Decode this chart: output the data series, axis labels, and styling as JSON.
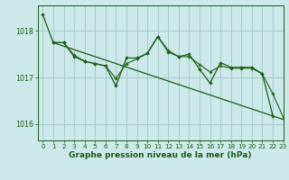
{
  "background_color": "#cce8e8",
  "grid_color": "#a8cccc",
  "line_color_dark": "#1a5c1a",
  "line_color_medium": "#2d6e2d",
  "xlabel": "Graphe pression niveau de la mer (hPa)",
  "xlim": [
    -0.5,
    23
  ],
  "ylim": [
    1015.65,
    1018.55
  ],
  "yticks": [
    1016,
    1017,
    1018
  ],
  "xticks": [
    0,
    1,
    2,
    3,
    4,
    5,
    6,
    7,
    8,
    9,
    10,
    11,
    12,
    13,
    14,
    15,
    16,
    17,
    18,
    19,
    20,
    21,
    22,
    23
  ],
  "series1_x": [
    0,
    1,
    2,
    3,
    4,
    5,
    6,
    7,
    8,
    9,
    10,
    11,
    12,
    13,
    14,
    15,
    16,
    17,
    18,
    19,
    20,
    21,
    22
  ],
  "series1_y": [
    1018.35,
    1017.75,
    1017.75,
    1017.45,
    1017.35,
    1017.3,
    1017.25,
    1016.82,
    1017.42,
    1017.42,
    1017.52,
    1017.88,
    1017.55,
    1017.45,
    1017.5,
    1017.18,
    1016.88,
    1017.32,
    1017.22,
    1017.22,
    1017.22,
    1017.08,
    1016.18
  ],
  "series2_x": [
    1,
    2,
    3,
    4,
    5,
    6,
    7,
    8,
    9,
    10,
    11,
    12,
    13,
    14,
    15,
    16,
    17,
    18,
    19,
    20,
    21,
    22,
    23
  ],
  "series2_y": [
    1017.75,
    1017.75,
    1017.48,
    1017.35,
    1017.3,
    1017.25,
    1016.98,
    1017.3,
    1017.4,
    1017.52,
    1017.88,
    1017.58,
    1017.45,
    1017.45,
    1017.28,
    1017.12,
    1017.25,
    1017.2,
    1017.2,
    1017.2,
    1017.08,
    1016.65,
    1016.15
  ],
  "trend_x": [
    1,
    23
  ],
  "trend_y": [
    1017.75,
    1016.1
  ],
  "xlabel_fontsize": 6.5,
  "tick_fontsize": 5.2
}
